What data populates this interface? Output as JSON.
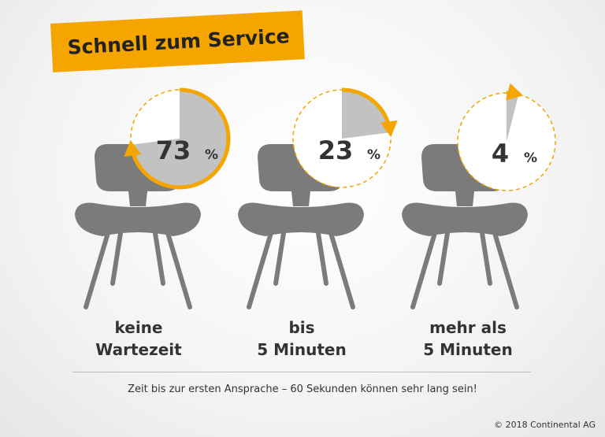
{
  "title": "Schnell zum Service",
  "chart_data": {
    "type": "pie",
    "categories": [
      "keine Wartezeit",
      "bis 5 Minuten",
      "mehr als 5 Minuten"
    ],
    "values": [
      73,
      23,
      4
    ],
    "value_labels": [
      "73",
      "23",
      "4"
    ],
    "unit": "%",
    "colors": {
      "slice": "#c2c2c2",
      "rest": "#ffffff",
      "arc": "#f5a500",
      "chair": "#7b7b7b"
    }
  },
  "labels": [
    {
      "line1": "keine",
      "line2": "Wartezeit"
    },
    {
      "line1": "bis",
      "line2": "5 Minuten"
    },
    {
      "line1": "mehr als",
      "line2": "5 Minuten"
    }
  ],
  "footnote": "Zeit bis zur ersten Ansprache – 60 Sekunden können sehr lang sein!",
  "copyright": "© 2018 Continental AG"
}
